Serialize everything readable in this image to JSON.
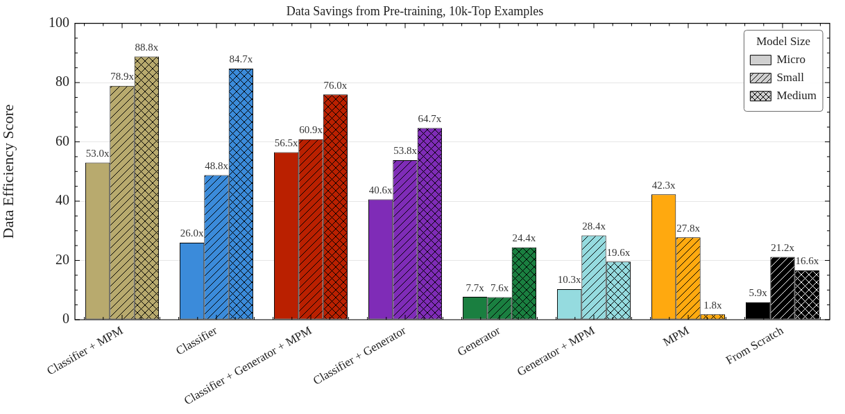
{
  "chart_data": {
    "type": "bar",
    "title": "Data Savings from Pre-training, 10k-Top Examples",
    "ylabel": "Data Efficiency Score",
    "legend_title": "Model Size",
    "categories": [
      "Classifier + MPM",
      "Classifier",
      "Classifier + Generator + MPM",
      "Classifier + Generator",
      "Generator",
      "Generator + MPM",
      "MPM",
      "From Scratch"
    ],
    "series": [
      {
        "name": "Micro",
        "colors": [
          "#b8aa6e",
          "#3b8bda",
          "#ba2000",
          "#7f2cb7",
          "#1a7f40",
          "#95dbdf",
          "#ffa90f",
          "#000000"
        ],
        "values": [
          53.0,
          26.0,
          56.5,
          40.6,
          7.7,
          10.3,
          42.3,
          5.9
        ],
        "value_labels": [
          "53.0x",
          "26.0x",
          "56.5x",
          "40.6x",
          "7.7x",
          "10.3x",
          "42.3x",
          "5.9x"
        ]
      },
      {
        "name": "Small",
        "colors": [
          "#b8aa6e",
          "#3b8bda",
          "#ba2000",
          "#7f2cb7",
          "#1a7f40",
          "#95dbdf",
          "#ffa90f",
          "#000000"
        ],
        "values": [
          78.9,
          48.8,
          60.9,
          53.8,
          7.6,
          28.4,
          27.8,
          21.2
        ],
        "value_labels": [
          "78.9x",
          "48.8x",
          "60.9x",
          "53.8x",
          "7.6x",
          "28.4x",
          "27.8x",
          "21.2x"
        ]
      },
      {
        "name": "Medium",
        "colors": [
          "#b8aa6e",
          "#3b8bda",
          "#ba2000",
          "#7f2cb7",
          "#1a7f40",
          "#95dbdf",
          "#ffa90f",
          "#000000"
        ],
        "values": [
          88.8,
          84.7,
          76.0,
          64.7,
          24.4,
          19.6,
          1.8,
          16.6
        ],
        "value_labels": [
          "88.8x",
          "84.7x",
          "76.0x",
          "64.7x",
          "24.4x",
          "19.6x",
          "1.8x",
          "16.6x"
        ]
      }
    ],
    "ylim": [
      0,
      100
    ],
    "yticks": [
      0,
      {
        "value": 5,
        "label": null
      },
      {
        "value": 10,
        "label": null
      },
      {
        "value": 15,
        "label": null
      },
      20,
      {
        "value": 25,
        "label": null
      },
      {
        "value": 30,
        "label": null
      },
      {
        "value": 35,
        "label": null
      },
      40,
      {
        "value": 45,
        "label": null
      },
      {
        "value": 50,
        "label": null
      },
      {
        "value": 55,
        "label": null
      },
      60,
      {
        "value": 65,
        "label": null
      },
      {
        "value": 70,
        "label": null
      },
      {
        "value": 75,
        "label": null
      },
      80,
      {
        "value": 85,
        "label": null
      },
      {
        "value": 90,
        "label": null
      },
      {
        "value": 95,
        "label": null
      },
      100
    ],
    "grid": "y",
    "legend": "top right"
  }
}
